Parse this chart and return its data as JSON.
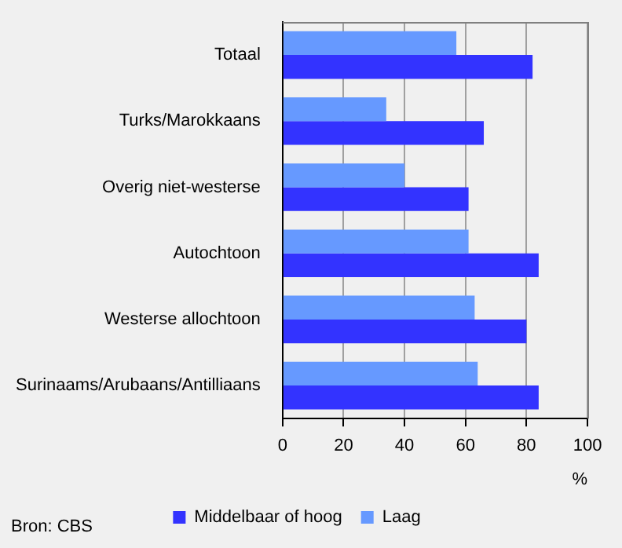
{
  "chart_data": {
    "type": "bar",
    "orientation": "horizontal",
    "categories": [
      "Totaal",
      "Turks/Marokkaans",
      "Overig niet-westerse",
      "Autochtoon",
      "Westerse allochtoon",
      "Surinaams/Arubaans/Antilliaans"
    ],
    "series": [
      {
        "name": "Middelbaar of hoog",
        "color": "#3333ff",
        "values": [
          82,
          66,
          61,
          84,
          80,
          84
        ]
      },
      {
        "name": "Laag",
        "color": "#6699ff",
        "values": [
          57,
          34,
          40,
          61,
          63,
          64
        ]
      }
    ],
    "xlim": [
      0,
      100
    ],
    "xticks": [
      0,
      20,
      40,
      60,
      80,
      100
    ],
    "xlabel": "%",
    "grid": "x",
    "legend": "bottom",
    "annotations": [
      "Bron: CBS"
    ]
  }
}
